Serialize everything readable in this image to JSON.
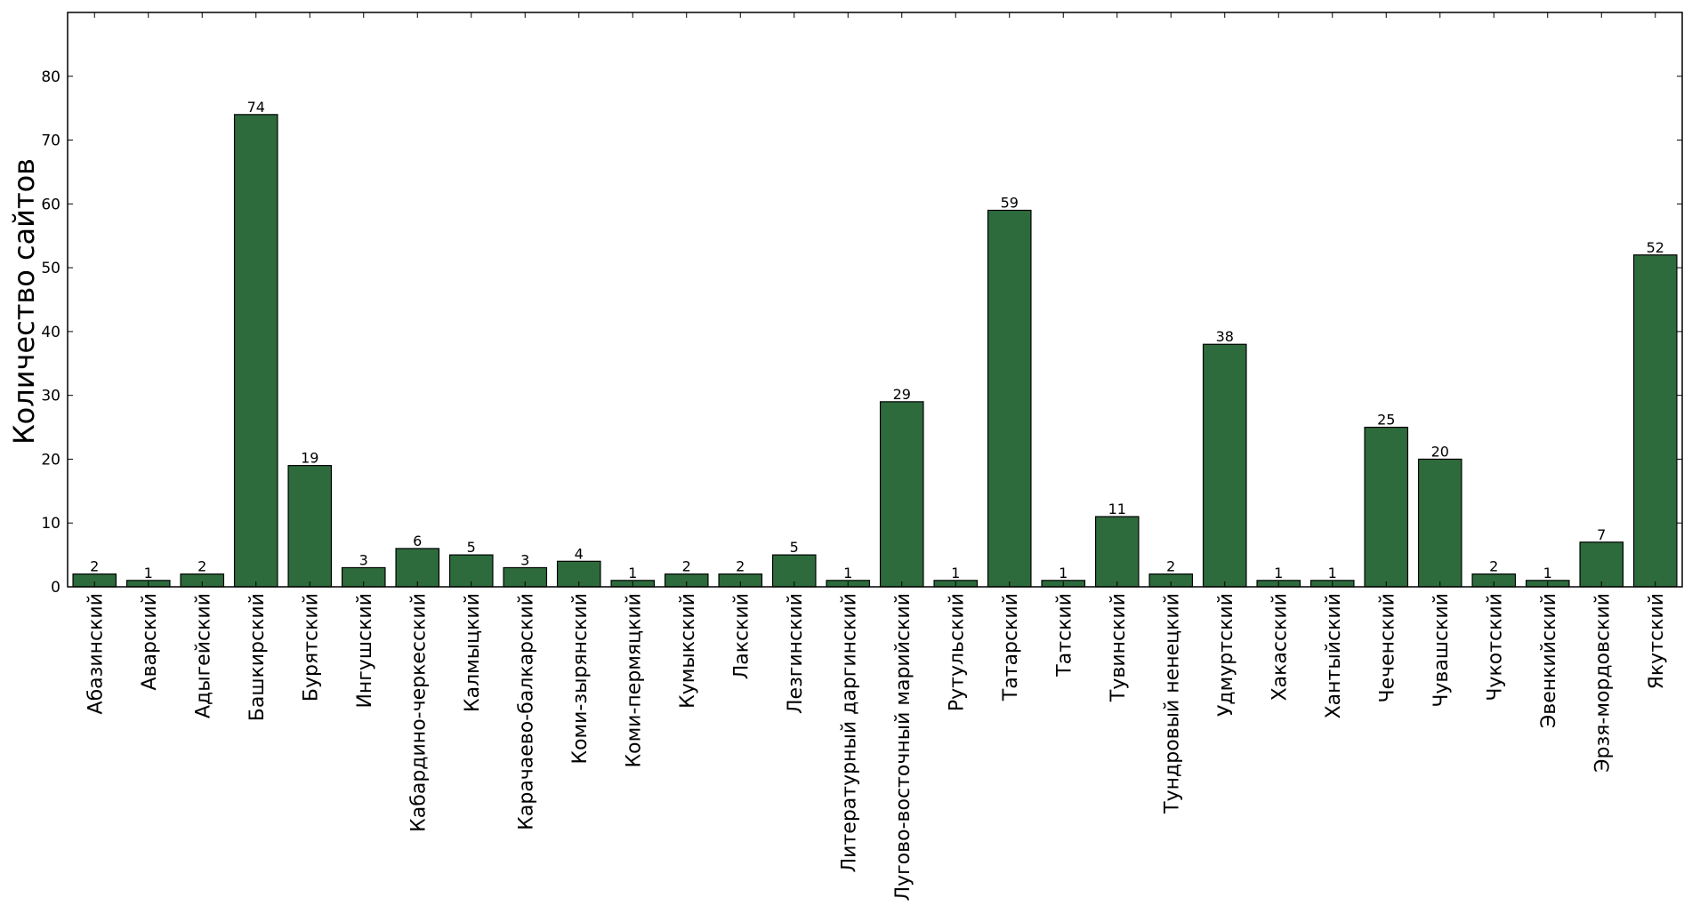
{
  "chart_data": {
    "type": "bar",
    "title": "",
    "xlabel": "",
    "ylabel": "Количество сайтов",
    "ylim": [
      0,
      90
    ],
    "yticks": [
      0,
      10,
      20,
      30,
      40,
      50,
      60,
      70,
      80
    ],
    "bar_color": "#2d6b3c",
    "grid": false,
    "categories": [
      "Абазинский",
      "Аварский",
      "Адыгейский",
      "Башкирский",
      "Бурятский",
      "Ингушский",
      "Кабардино-черкесский",
      "Калмыцкий",
      "Карачаево-балкарский",
      "Коми-зырянский",
      "Коми-пермяцкий",
      "Кумыкский",
      "Лакский",
      "Лезгинский",
      "Литературный даргинский",
      "Лугово-восточный марийский",
      "Рутульский",
      "Татарский",
      "Татский",
      "Тувинский",
      "Тундровый ненецкий",
      "Удмуртский",
      "Хакасский",
      "Хантыйский",
      "Чеченский",
      "Чувашский",
      "Чукотский",
      "Эвенкийский",
      "Эрзя-мордовский",
      "Якутский"
    ],
    "values": [
      2,
      1,
      2,
      74,
      19,
      3,
      6,
      5,
      3,
      4,
      1,
      2,
      2,
      5,
      1,
      29,
      1,
      59,
      1,
      11,
      2,
      38,
      1,
      1,
      25,
      20,
      2,
      1,
      7,
      52
    ]
  }
}
